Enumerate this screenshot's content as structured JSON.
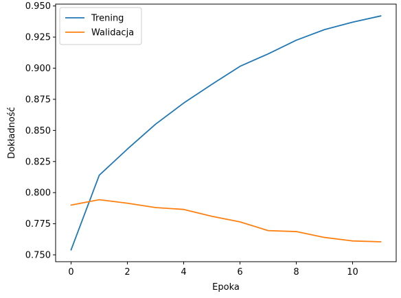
{
  "chart_data": {
    "type": "line",
    "xlabel": "Epoka",
    "ylabel": "Dokładność",
    "xlim": [
      -0.55,
      11.55
    ],
    "ylim": [
      0.7445,
      0.9515
    ],
    "xticks": [
      0,
      2,
      4,
      6,
      8,
      10
    ],
    "xtick_labels": [
      "0",
      "2",
      "4",
      "6",
      "8",
      "10"
    ],
    "yticks": [
      0.75,
      0.775,
      0.8,
      0.825,
      0.85,
      0.875,
      0.9,
      0.925,
      0.95
    ],
    "ytick_labels": [
      "0.750",
      "0.775",
      "0.800",
      "0.825",
      "0.850",
      "0.875",
      "0.900",
      "0.925",
      "0.950"
    ],
    "grid": false,
    "legend_position": "top-left",
    "x": [
      0,
      1,
      2,
      3,
      4,
      5,
      6,
      7,
      8,
      9,
      10,
      11
    ],
    "series": [
      {
        "name": "Trening",
        "color": "#1f77b4",
        "values": [
          0.754,
          0.814,
          0.835,
          0.855,
          0.872,
          0.887,
          0.9015,
          0.9115,
          0.9225,
          0.931,
          0.937,
          0.942
        ]
      },
      {
        "name": "Walidacja",
        "color": "#ff7f0e",
        "values": [
          0.79,
          0.7943,
          0.7915,
          0.788,
          0.7865,
          0.781,
          0.7765,
          0.7695,
          0.7687,
          0.764,
          0.7612,
          0.7605
        ]
      }
    ]
  }
}
